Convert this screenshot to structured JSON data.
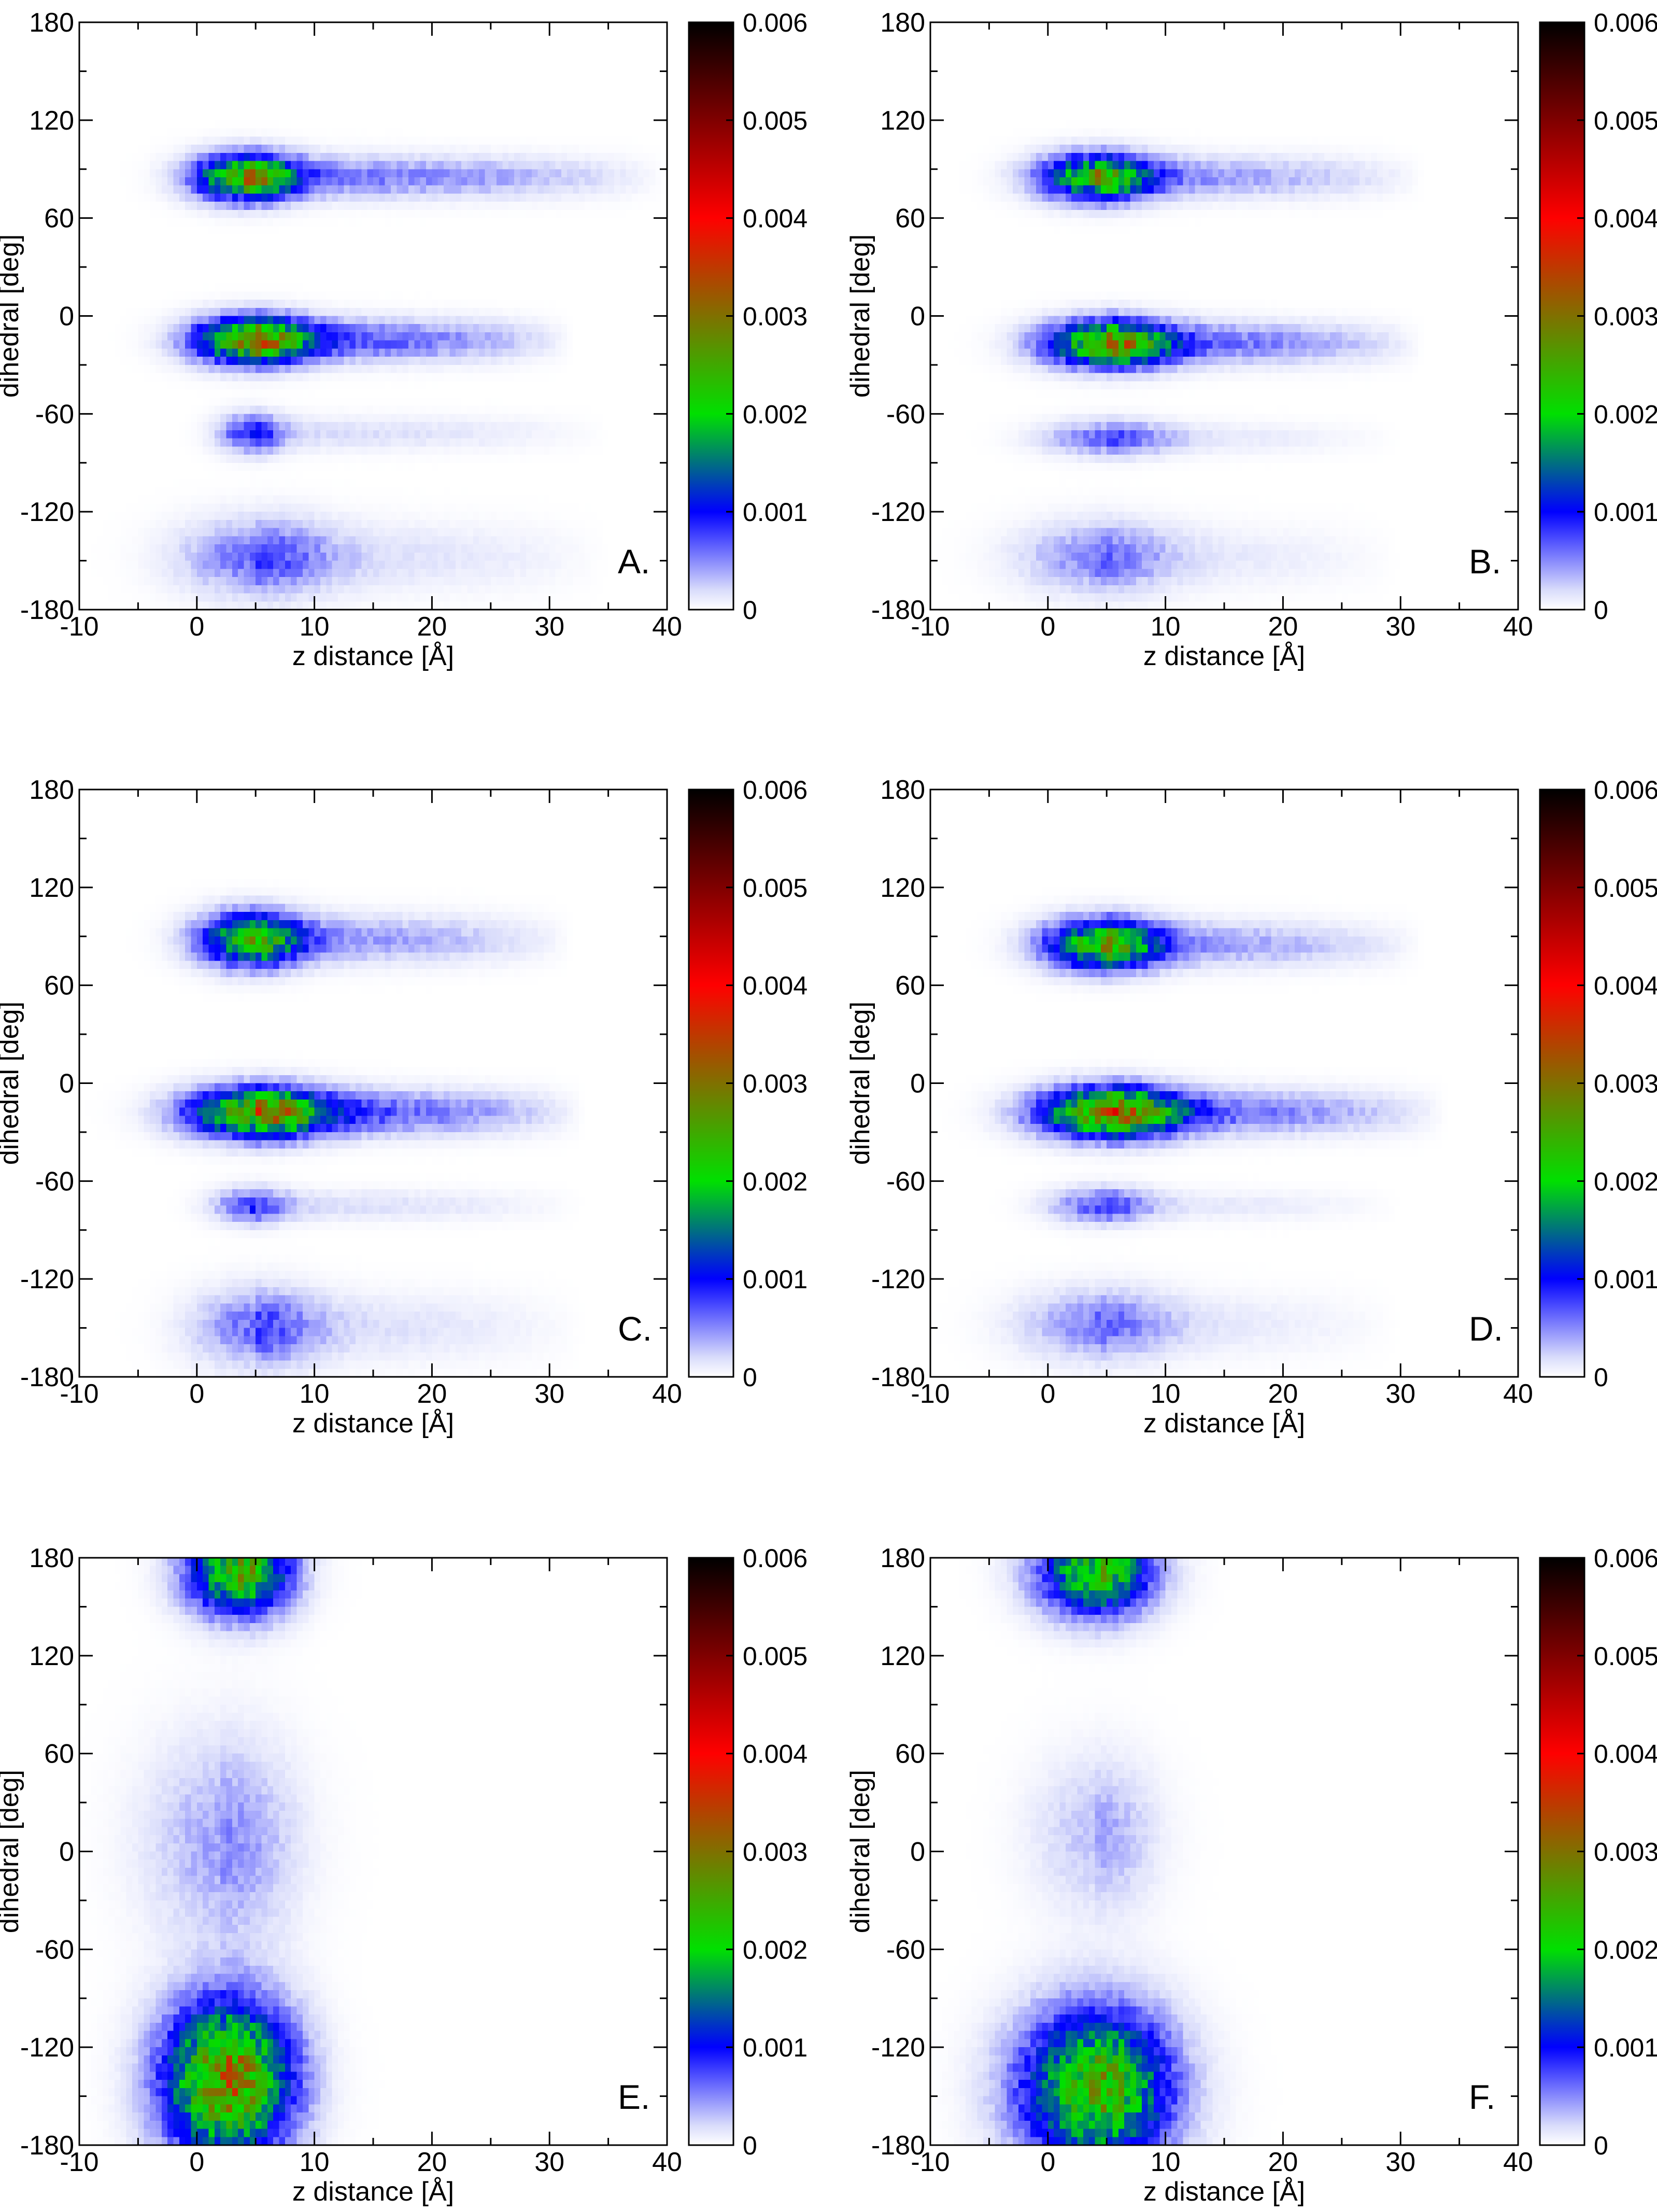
{
  "colors": {
    "background": "#ffffff",
    "frame": "#000000",
    "colormap": [
      "#ffffff",
      "#d9dcfb",
      "#0000ff",
      "#00e000",
      "#ff0000",
      "#000000"
    ],
    "colormap_stops": [
      0,
      0.0002,
      0.001,
      0.002,
      0.004,
      0.006
    ]
  },
  "chart_data": [
    {
      "type": "heatmap",
      "panel_label": "A.",
      "xlabel": "z distance [Å]",
      "ylabel": "dihedral [deg]",
      "xlim": [
        -10,
        40
      ],
      "ylim": [
        -180,
        180
      ],
      "xticks": [
        -10,
        0,
        10,
        20,
        30,
        40
      ],
      "yticks": [
        -180,
        -120,
        -60,
        0,
        60,
        120,
        180
      ],
      "colorbar": {
        "range": [
          0,
          0.006
        ],
        "ticks": [
          "0",
          "0.001",
          "0.002",
          "0.003",
          "0.004",
          "0.005",
          "0.006"
        ]
      },
      "density_features": [
        {
          "z_center": 4,
          "dihedral_center": 85,
          "z_halfwidth": 4,
          "dihedral_halfwidth": 13,
          "peak_density": 0.0025,
          "tail_to_z": 40,
          "tail_density": 0.0006
        },
        {
          "z_center": 4.5,
          "dihedral_center": -15,
          "z_halfwidth": 4.5,
          "dihedral_halfwidth": 13,
          "peak_density": 0.0027,
          "tail_to_z": 32,
          "tail_density": 0.0008
        },
        {
          "z_center": 4.5,
          "dihedral_center": -72,
          "z_halfwidth": 2.5,
          "dihedral_halfwidth": 11,
          "peak_density": 0.0009,
          "tail_to_z": 35,
          "tail_density": 0.0002
        },
        {
          "z_center": 5,
          "dihedral_center": -148,
          "z_halfwidth": 6,
          "dihedral_halfwidth": 22,
          "peak_density": 0.0006,
          "tail_to_z": 35,
          "tail_density": 0.0002
        }
      ]
    },
    {
      "type": "heatmap",
      "panel_label": "B.",
      "xlabel": "z distance [Å]",
      "ylabel": "dihedral [deg]",
      "xlim": [
        -10,
        40
      ],
      "ylim": [
        -180,
        180
      ],
      "xticks": [
        -10,
        0,
        10,
        20,
        30,
        40
      ],
      "yticks": [
        -180,
        -120,
        -60,
        0,
        60,
        120,
        180
      ],
      "colorbar": {
        "range": [
          0,
          0.006
        ],
        "ticks": [
          "0",
          "0.001",
          "0.002",
          "0.003",
          "0.004",
          "0.005",
          "0.006"
        ]
      },
      "density_features": [
        {
          "z_center": 4,
          "dihedral_center": 85,
          "z_halfwidth": 4.5,
          "dihedral_halfwidth": 13,
          "peak_density": 0.0022,
          "tail_to_z": 32,
          "tail_density": 0.0005
        },
        {
          "z_center": 5,
          "dihedral_center": -17,
          "z_halfwidth": 5,
          "dihedral_halfwidth": 13,
          "peak_density": 0.0025,
          "tail_to_z": 32,
          "tail_density": 0.0007
        },
        {
          "z_center": 5,
          "dihedral_center": -75,
          "z_halfwidth": 5,
          "dihedral_halfwidth": 10,
          "peak_density": 0.0006,
          "tail_to_z": 30,
          "tail_density": 0.00015
        },
        {
          "z_center": 4,
          "dihedral_center": -148,
          "z_halfwidth": 6,
          "dihedral_halfwidth": 20,
          "peak_density": 0.0005,
          "tail_to_z": 30,
          "tail_density": 0.00015
        }
      ]
    },
    {
      "type": "heatmap",
      "panel_label": "C.",
      "xlabel": "z distance [Å]",
      "ylabel": "dihedral [deg]",
      "xlim": [
        -10,
        40
      ],
      "ylim": [
        -180,
        180
      ],
      "xticks": [
        -10,
        0,
        10,
        20,
        30,
        40
      ],
      "yticks": [
        -180,
        -120,
        -60,
        0,
        60,
        120,
        180
      ],
      "colorbar": {
        "range": [
          0,
          0.006
        ],
        "ticks": [
          "0",
          "0.001",
          "0.002",
          "0.003",
          "0.004",
          "0.005",
          "0.006"
        ]
      },
      "density_features": [
        {
          "z_center": 4.5,
          "dihedral_center": 88,
          "z_halfwidth": 4,
          "dihedral_halfwidth": 15,
          "peak_density": 0.0022,
          "tail_to_z": 32,
          "tail_density": 0.0005
        },
        {
          "z_center": 5,
          "dihedral_center": -18,
          "z_halfwidth": 5.5,
          "dihedral_halfwidth": 14,
          "peak_density": 0.0026,
          "tail_to_z": 33,
          "tail_density": 0.0008
        },
        {
          "z_center": 4.5,
          "dihedral_center": -75,
          "z_halfwidth": 3,
          "dihedral_halfwidth": 10,
          "peak_density": 0.0007,
          "tail_to_z": 33,
          "tail_density": 0.0002
        },
        {
          "z_center": 5,
          "dihedral_center": -150,
          "z_halfwidth": 5,
          "dihedral_halfwidth": 22,
          "peak_density": 0.0006,
          "tail_to_z": 33,
          "tail_density": 0.0002
        }
      ]
    },
    {
      "type": "heatmap",
      "panel_label": "D.",
      "xlabel": "z distance [Å]",
      "ylabel": "dihedral [deg]",
      "xlim": [
        -10,
        40
      ],
      "ylim": [
        -180,
        180
      ],
      "xticks": [
        -10,
        0,
        10,
        20,
        30,
        40
      ],
      "yticks": [
        -180,
        -120,
        -60,
        0,
        60,
        120,
        180
      ],
      "colorbar": {
        "range": [
          0,
          0.006
        ],
        "ticks": [
          "0",
          "0.001",
          "0.002",
          "0.003",
          "0.004",
          "0.005",
          "0.006"
        ]
      },
      "density_features": [
        {
          "z_center": 4.5,
          "dihedral_center": 85,
          "z_halfwidth": 4.5,
          "dihedral_halfwidth": 14,
          "peak_density": 0.0023,
          "tail_to_z": 32,
          "tail_density": 0.0005
        },
        {
          "z_center": 5,
          "dihedral_center": -18,
          "z_halfwidth": 5.5,
          "dihedral_halfwidth": 14,
          "peak_density": 0.0028,
          "tail_to_z": 34,
          "tail_density": 0.0007
        },
        {
          "z_center": 4.5,
          "dihedral_center": -75,
          "z_halfwidth": 4,
          "dihedral_halfwidth": 10,
          "peak_density": 0.0007,
          "tail_to_z": 30,
          "tail_density": 0.00015
        },
        {
          "z_center": 4,
          "dihedral_center": -148,
          "z_halfwidth": 6,
          "dihedral_halfwidth": 20,
          "peak_density": 0.0005,
          "tail_to_z": 30,
          "tail_density": 0.00015
        }
      ]
    },
    {
      "type": "heatmap",
      "panel_label": "E.",
      "xlabel": "z distance [Å]",
      "ylabel": "dihedral [deg]",
      "xlim": [
        -10,
        40
      ],
      "ylim": [
        -180,
        180
      ],
      "xticks": [
        -10,
        0,
        10,
        20,
        30,
        40
      ],
      "yticks": [
        -180,
        -120,
        -60,
        0,
        60,
        120,
        180
      ],
      "colorbar": {
        "range": [
          0,
          0.006
        ],
        "ticks": [
          "0",
          "0.001",
          "0.002",
          "0.003",
          "0.004",
          "0.005",
          "0.006"
        ]
      },
      "density_features": [
        {
          "z_center": 3.5,
          "dihedral_center": 172,
          "z_halfwidth": 4,
          "dihedral_halfwidth": 25,
          "peak_density": 0.0024,
          "tail_to_z": 10,
          "tail_density": 0.0002
        },
        {
          "z_center": 2,
          "dihedral_center": 5,
          "z_halfwidth": 6,
          "dihedral_halfwidth": 60,
          "peak_density": 0.0004,
          "tail_to_z": 10,
          "tail_density": 0.0001
        },
        {
          "z_center": 2.5,
          "dihedral_center": -140,
          "z_halfwidth": 5,
          "dihedral_halfwidth": 45,
          "peak_density": 0.0029,
          "tail_to_z": 12,
          "tail_density": 0.0002
        }
      ]
    },
    {
      "type": "heatmap",
      "panel_label": "F.",
      "xlabel": "z distance [Å]",
      "ylabel": "dihedral [deg]",
      "xlim": [
        -10,
        40
      ],
      "ylim": [
        -180,
        180
      ],
      "xticks": [
        -10,
        0,
        10,
        20,
        30,
        40
      ],
      "yticks": [
        -180,
        -120,
        -60,
        0,
        60,
        120,
        180
      ],
      "colorbar": {
        "range": [
          0,
          0.006
        ],
        "ticks": [
          "0",
          "0.001",
          "0.002",
          "0.003",
          "0.004",
          "0.005",
          "0.006"
        ]
      },
      "density_features": [
        {
          "z_center": 4,
          "dihedral_center": 172,
          "z_halfwidth": 4.5,
          "dihedral_halfwidth": 25,
          "peak_density": 0.0022,
          "tail_to_z": 10,
          "tail_density": 0.0002
        },
        {
          "z_center": 4,
          "dihedral_center": 10,
          "z_halfwidth": 5,
          "dihedral_halfwidth": 45,
          "peak_density": 0.0003,
          "tail_to_z": 10,
          "tail_density": 0.0001
        },
        {
          "z_center": 4,
          "dihedral_center": -145,
          "z_halfwidth": 6,
          "dihedral_halfwidth": 45,
          "peak_density": 0.0024,
          "tail_to_z": 12,
          "tail_density": 0.0002
        }
      ]
    }
  ]
}
